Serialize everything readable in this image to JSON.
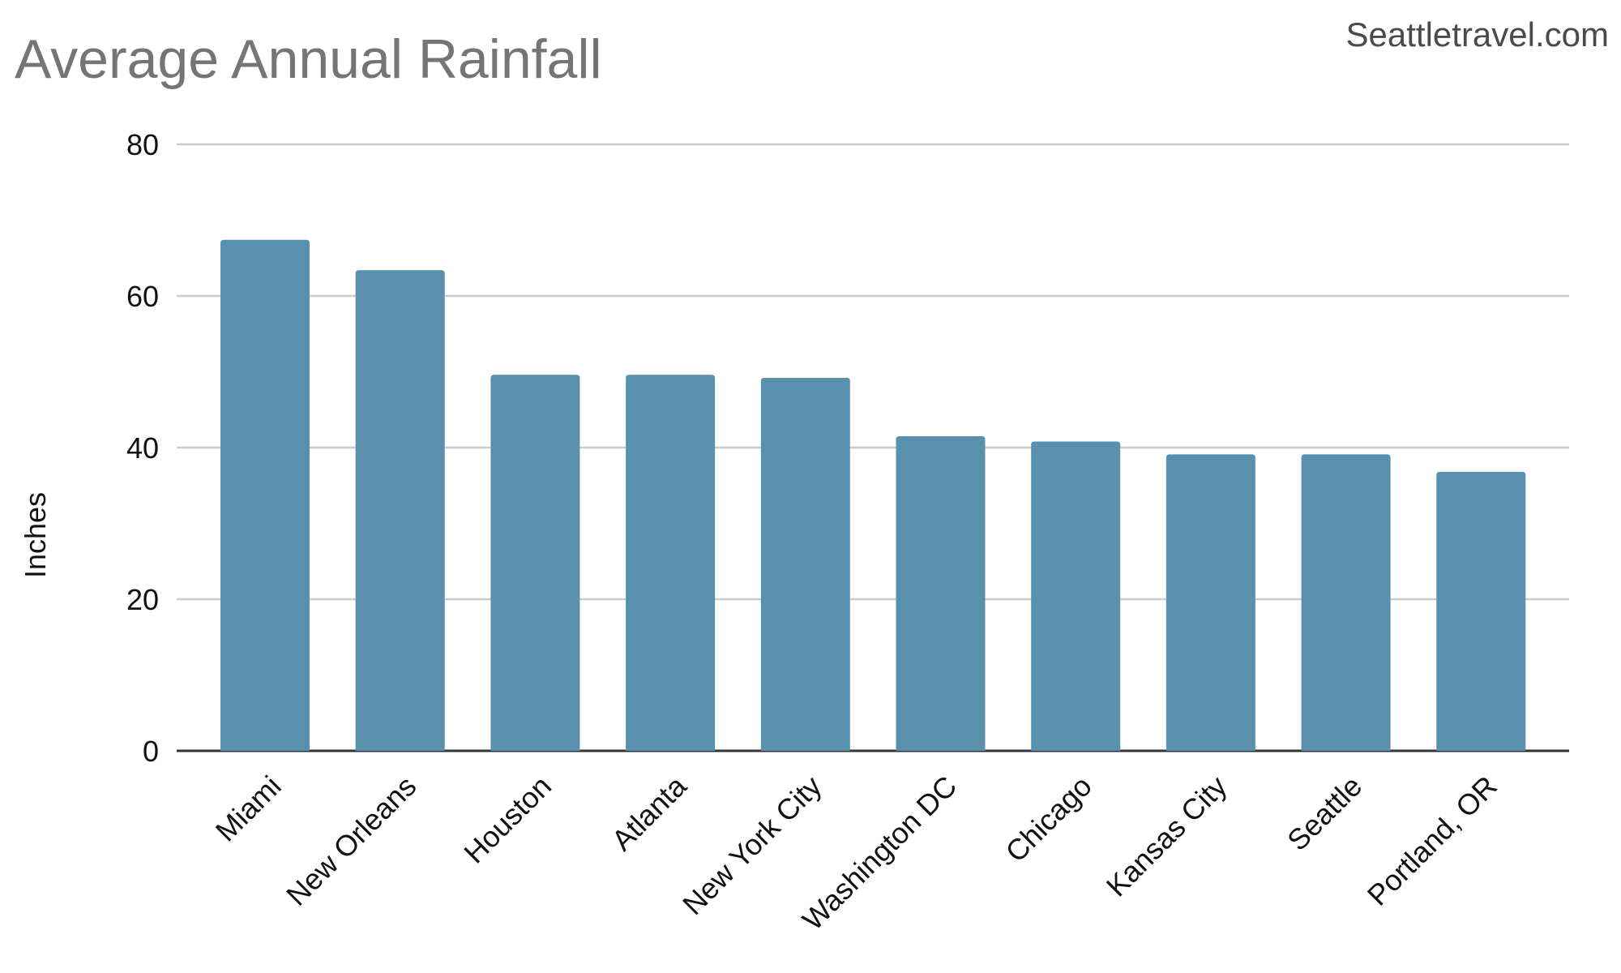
{
  "source": "Seattletravel.com",
  "chart_data": {
    "type": "bar",
    "title": "Average Annual Rainfall",
    "xlabel": "",
    "ylabel": "Inches",
    "ylim": [
      0,
      80
    ],
    "yticks": [
      0,
      20,
      40,
      60,
      80
    ],
    "grid": true,
    "legend": "none",
    "bar_color": "#5990AE",
    "categories": [
      "Miami",
      "New Orleans",
      "Houston",
      "Atlanta",
      "New York City",
      "Washington DC",
      "Chicago",
      "Kansas City",
      "Seattle",
      "Portland, OR"
    ],
    "values": [
      67.4,
      63.4,
      49.6,
      49.6,
      49.2,
      41.5,
      40.8,
      39.1,
      39.1,
      36.8
    ]
  }
}
